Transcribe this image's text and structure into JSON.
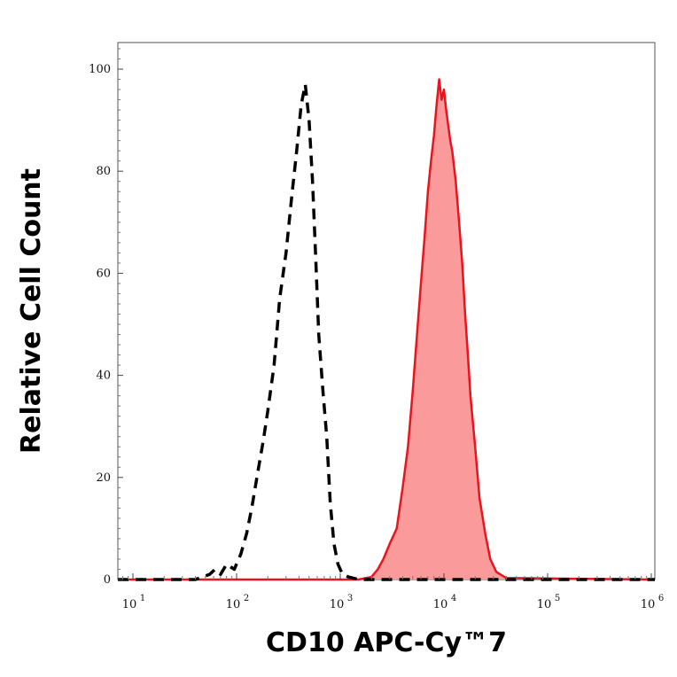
{
  "chart_data": {
    "type": "area",
    "xlabel": "CD10 APC-Cy™7",
    "ylabel": "Relative Cell Count",
    "x_scale": "log",
    "xlim": [
      5,
      1200000
    ],
    "ylim": [
      0,
      105
    ],
    "x_ticks": [
      {
        "base": "10",
        "exp": "1",
        "value": 10
      },
      {
        "base": "10",
        "exp": "2",
        "value": 100
      },
      {
        "base": "10",
        "exp": "3",
        "value": 1000
      },
      {
        "base": "10",
        "exp": "4",
        "value": 10000
      },
      {
        "base": "10",
        "exp": "5",
        "value": 100000
      },
      {
        "base": "10",
        "exp": "6",
        "value": 1000000
      }
    ],
    "y_ticks": [
      "0",
      "20",
      "40",
      "60",
      "80",
      "100"
    ],
    "grid": false,
    "series": [
      {
        "style": "dashed",
        "color": "#000000",
        "fill": false,
        "x": [
          5,
          40,
          55,
          62,
          70,
          80,
          95,
          110,
          125,
          140,
          160,
          180,
          200,
          230,
          260,
          300,
          340,
          380,
          420,
          460,
          500,
          540,
          580,
          620,
          680,
          740,
          800,
          870,
          950,
          1050,
          1200,
          1500,
          3000,
          1200000
        ],
        "y": [
          0,
          0,
          1,
          2,
          1,
          3,
          2,
          5,
          9,
          14,
          21,
          27,
          33,
          42,
          55,
          64,
          75,
          84,
          93,
          97,
          90,
          78,
          63,
          48,
          37,
          28,
          15,
          7,
          3,
          1,
          0.5,
          0,
          0,
          0
        ]
      },
      {
        "style": "solid",
        "color": "#e8141e",
        "fill": true,
        "fill_color": "#fb9a9a",
        "x": [
          5,
          1500,
          2000,
          2300,
          2600,
          3000,
          3500,
          4000,
          4500,
          5000,
          5500,
          6000,
          6500,
          7000,
          7500,
          8000,
          8500,
          9000,
          9500,
          10000,
          10500,
          11000,
          11500,
          12000,
          13000,
          14000,
          15000,
          16000,
          17000,
          18000,
          20000,
          22000,
          25000,
          28000,
          32000,
          40000,
          1200000
        ],
        "y": [
          0,
          0,
          0.5,
          2,
          4,
          7,
          10,
          18,
          26,
          37,
          48,
          58,
          67,
          76,
          82,
          87,
          93,
          98,
          94,
          96,
          92,
          89,
          86,
          84,
          78,
          70,
          62,
          52,
          44,
          36,
          26,
          16,
          9,
          4,
          1.5,
          0.3,
          0
        ]
      }
    ]
  }
}
